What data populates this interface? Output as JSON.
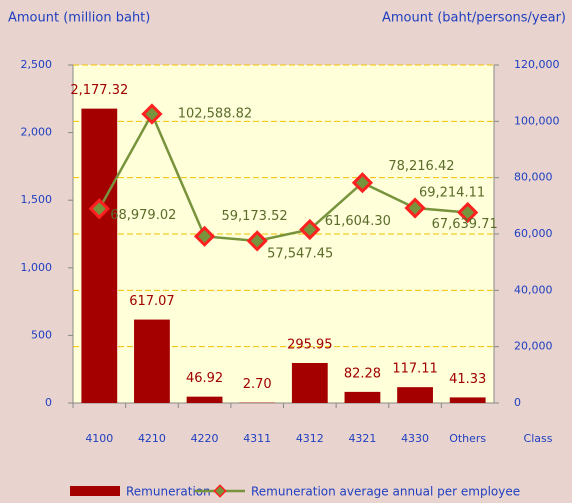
{
  "chart_data": {
    "type": "bar-line",
    "y_label": "Amount (million baht)",
    "y2_label": "Amount (baht/persons/year)",
    "x_label": "Class",
    "categories": [
      "4100",
      "4210",
      "4220",
      "4311",
      "4312",
      "4321",
      "4330",
      "Others"
    ],
    "ylim": [
      0,
      2500
    ],
    "yticks": [
      0,
      500,
      {
        "value": 1000,
        "label": "1,000"
      },
      {
        "value": 1500,
        "label": "1,500"
      },
      {
        "value": 2000,
        "label": "2,000"
      },
      {
        "value": 2500,
        "label": "2,500"
      }
    ],
    "y2lim": [
      0,
      120000
    ],
    "y2ticks": [
      0,
      {
        "value": 20000,
        "label": "20,000"
      },
      {
        "value": 40000,
        "label": "40,000"
      },
      {
        "value": 60000,
        "label": "60,000"
      },
      {
        "value": 80000,
        "label": "80,000"
      },
      {
        "value": 100000,
        "label": "100,000"
      },
      {
        "value": 120000,
        "label": "120,000"
      }
    ],
    "grid": true,
    "legend": "bottom",
    "series": [
      {
        "name": "Remuneration",
        "type": "bar",
        "color": "#a50000",
        "values": [
          2177.32,
          617.07,
          46.92,
          2.7,
          295.95,
          82.28,
          117.11,
          41.33
        ],
        "value_labels": [
          "2,177.32",
          "617.07",
          "46.92",
          "2.70",
          "295.95",
          "82.28",
          "117.11",
          "41.33"
        ]
      },
      {
        "name": "Remuneration average annual per employee",
        "type": "line",
        "axis": "y2",
        "color": "#77933c",
        "values": [
          68979.02,
          102588.82,
          59173.52,
          57547.45,
          61604.3,
          78216.42,
          69214.11,
          67639.71
        ],
        "value_labels": [
          "68,979.02",
          "102,588.82",
          "59,173.52",
          "57,547.45",
          "61,604.30",
          "78,216.42",
          "69,214.11",
          "67,639.71"
        ]
      }
    ]
  }
}
